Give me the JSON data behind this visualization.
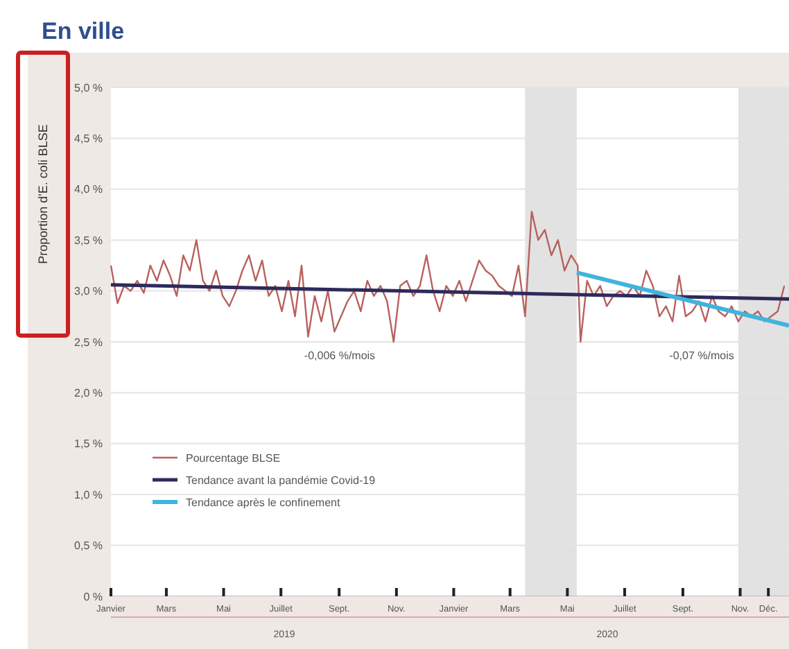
{
  "chart_data": {
    "type": "line",
    "title": "En ville",
    "ylabel": "Proportion d'E. coli BLSE",
    "xlim": [
      "2019-01-01",
      "2020-12-23"
    ],
    "xticks": [
      {
        "value": "2019-01-01",
        "label": "Janvier"
      },
      {
        "value": "2019-03-01",
        "label": "Mars"
      },
      {
        "value": "2019-05-01",
        "label": "Mai"
      },
      {
        "value": "2019-07-01",
        "label": "Juillet"
      },
      {
        "value": "2019-09-01",
        "label": "Sept."
      },
      {
        "value": "2019-11-01",
        "label": "Nov."
      },
      {
        "value": "2020-01-01",
        "label": "Janvier"
      },
      {
        "value": "2020-03-01",
        "label": "Mars"
      },
      {
        "value": "2020-05-01",
        "label": "Mai"
      },
      {
        "value": "2020-07-01",
        "label": "Juillet"
      },
      {
        "value": "2020-09-01",
        "label": "Sept."
      },
      {
        "value": "2020-11-01",
        "label": "Nov."
      },
      {
        "value": "2020-12-01",
        "label": "Déc."
      }
    ],
    "ylim": [
      0,
      5
    ],
    "yticks": [
      {
        "value": 0,
        "label": "0 %"
      },
      {
        "value": 0.5,
        "label": "0,5 %"
      },
      {
        "value": 1,
        "label": "1,0 %"
      },
      {
        "value": 1.5,
        "label": "1,5 %"
      },
      {
        "value": 2,
        "label": "2,0 %"
      },
      {
        "value": 2.5,
        "label": "2,5 %"
      },
      {
        "value": 3,
        "label": "3,0 %"
      },
      {
        "value": 3.5,
        "label": "3,5 %"
      },
      {
        "value": 4,
        "label": "4,0 %"
      },
      {
        "value": 4.5,
        "label": "4,5 %"
      },
      {
        "value": 5,
        "label": "5,0 %"
      }
    ],
    "grid": "y",
    "legend": "bottom left",
    "marker": "none",
    "line_style": "solid",
    "bands": [
      {
        "axis": "x",
        "from": "2020-03-17",
        "to": "2020-05-11",
        "color": "#e2e2e2"
      },
      {
        "axis": "x",
        "from": "2020-10-30",
        "to": "2020-12-23",
        "color": "#e2e2e2"
      }
    ],
    "series": [
      {
        "name": "Pourcentage BLSE",
        "color": "#b8615e",
        "x": [
          "2019-01-01",
          "2019-01-08",
          "2019-01-15",
          "2019-01-22",
          "2019-01-29",
          "2019-02-05",
          "2019-02-12",
          "2019-02-19",
          "2019-02-26",
          "2019-03-05",
          "2019-03-12",
          "2019-03-19",
          "2019-03-26",
          "2019-04-02",
          "2019-04-09",
          "2019-04-16",
          "2019-04-23",
          "2019-04-30",
          "2019-05-07",
          "2019-05-14",
          "2019-05-21",
          "2019-05-28",
          "2019-06-04",
          "2019-06-11",
          "2019-06-18",
          "2019-06-25",
          "2019-07-02",
          "2019-07-09",
          "2019-07-16",
          "2019-07-23",
          "2019-07-30",
          "2019-08-06",
          "2019-08-13",
          "2019-08-20",
          "2019-08-27",
          "2019-09-03",
          "2019-09-10",
          "2019-09-17",
          "2019-09-24",
          "2019-10-01",
          "2019-10-08",
          "2019-10-15",
          "2019-10-22",
          "2019-10-29",
          "2019-11-05",
          "2019-11-12",
          "2019-11-19",
          "2019-11-26",
          "2019-12-03",
          "2019-12-10",
          "2019-12-17",
          "2019-12-24",
          "2019-12-31",
          "2020-01-07",
          "2020-01-14",
          "2020-01-21",
          "2020-01-28",
          "2020-02-04",
          "2020-02-11",
          "2020-02-18",
          "2020-02-25",
          "2020-03-03",
          "2020-03-10",
          "2020-03-17",
          "2020-03-24",
          "2020-03-31",
          "2020-04-07",
          "2020-04-14",
          "2020-04-21",
          "2020-04-28",
          "2020-05-05",
          "2020-05-12",
          "2020-05-15",
          "2020-05-22",
          "2020-05-29",
          "2020-06-05",
          "2020-06-12",
          "2020-06-19",
          "2020-06-26",
          "2020-07-03",
          "2020-07-10",
          "2020-07-17",
          "2020-07-24",
          "2020-07-31",
          "2020-08-07",
          "2020-08-14",
          "2020-08-21",
          "2020-08-28",
          "2020-09-04",
          "2020-09-11",
          "2020-09-18",
          "2020-09-25",
          "2020-10-02",
          "2020-10-09",
          "2020-10-16",
          "2020-10-23",
          "2020-10-30",
          "2020-11-06",
          "2020-11-13",
          "2020-11-20",
          "2020-11-27",
          "2020-12-04",
          "2020-12-11",
          "2020-12-18"
        ],
        "values": [
          3.25,
          2.88,
          3.05,
          3.0,
          3.1,
          2.98,
          3.25,
          3.1,
          3.3,
          3.15,
          2.95,
          3.35,
          3.2,
          3.5,
          3.1,
          3.0,
          3.2,
          2.95,
          2.85,
          3.0,
          3.2,
          3.35,
          3.1,
          3.3,
          2.95,
          3.05,
          2.8,
          3.1,
          2.75,
          3.25,
          2.55,
          2.95,
          2.7,
          3.0,
          2.6,
          2.75,
          2.9,
          3.0,
          2.8,
          3.1,
          2.95,
          3.05,
          2.9,
          2.5,
          3.05,
          3.1,
          2.95,
          3.05,
          3.35,
          3.0,
          2.8,
          3.05,
          2.95,
          3.1,
          2.9,
          3.1,
          3.3,
          3.2,
          3.15,
          3.05,
          3.0,
          2.95,
          3.25,
          2.75,
          3.78,
          3.5,
          3.6,
          3.35,
          3.5,
          3.2,
          3.35,
          3.25,
          2.5,
          3.1,
          2.95,
          3.05,
          2.85,
          2.95,
          3.0,
          2.95,
          3.05,
          2.95,
          3.2,
          3.05,
          2.75,
          2.85,
          2.7,
          3.15,
          2.75,
          2.8,
          2.9,
          2.7,
          2.95,
          2.8,
          2.75,
          2.85,
          2.7,
          2.8,
          2.75,
          2.8,
          2.7,
          2.75,
          2.8,
          3.05
        ]
      },
      {
        "name": "Tendance avant la pandémie Covid-19",
        "color": "#2d2b5c",
        "x": [
          "2019-01-01",
          "2020-12-23"
        ],
        "values": [
          3.06,
          2.92
        ]
      },
      {
        "name": "Tendance après le confinement",
        "color": "#3fb4dd",
        "x": [
          "2020-05-11",
          "2020-12-23"
        ],
        "values": [
          3.18,
          2.66
        ]
      }
    ],
    "annotations": [
      "-0,006 %/mois",
      "-0,07 %/mois",
      "2019",
      "2020"
    ]
  }
}
